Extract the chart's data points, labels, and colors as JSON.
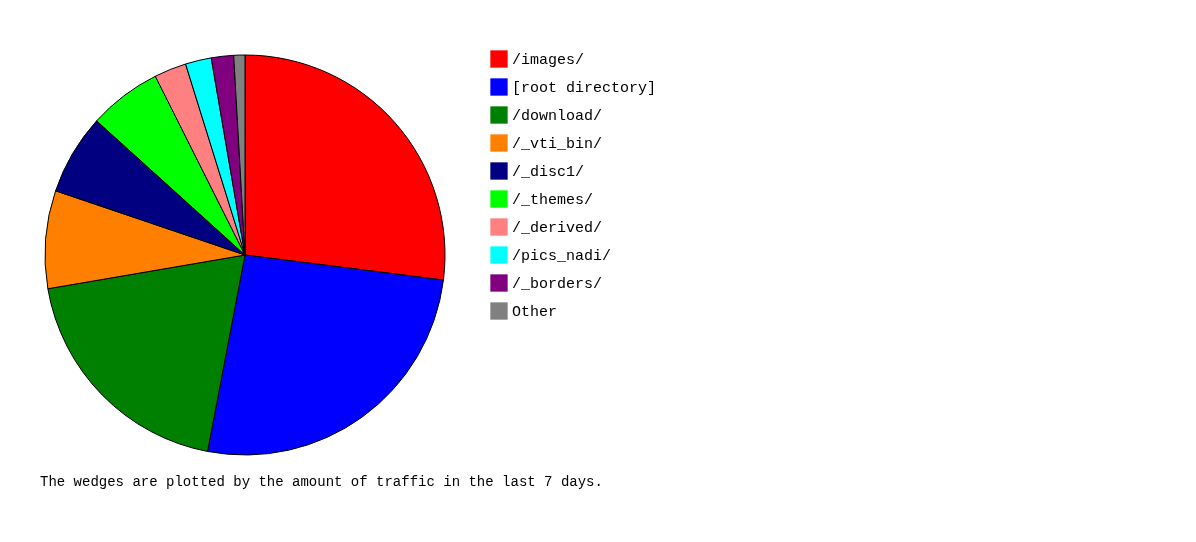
{
  "chart_data": {
    "type": "pie",
    "categories": [
      "/images/",
      "[root directory]",
      "/download/",
      "/_vti_bin/",
      "/_disc1/",
      "/_themes/",
      "/_derived/",
      "/pics_nadi/",
      "/_borders/",
      "Other"
    ],
    "values": [
      27.0,
      26.0,
      19.3,
      7.9,
      6.5,
      5.9,
      2.6,
      2.1,
      1.8,
      0.9
    ],
    "colors": [
      "#ff0000",
      "#0000ff",
      "#008000",
      "#ff8000",
      "#000080",
      "#00ff00",
      "#ff8080",
      "#00ffff",
      "#800080",
      "#808080"
    ],
    "legend": "right",
    "annotations": [
      "The wedges are plotted by the amount of traffic in the last 7 days."
    ]
  }
}
